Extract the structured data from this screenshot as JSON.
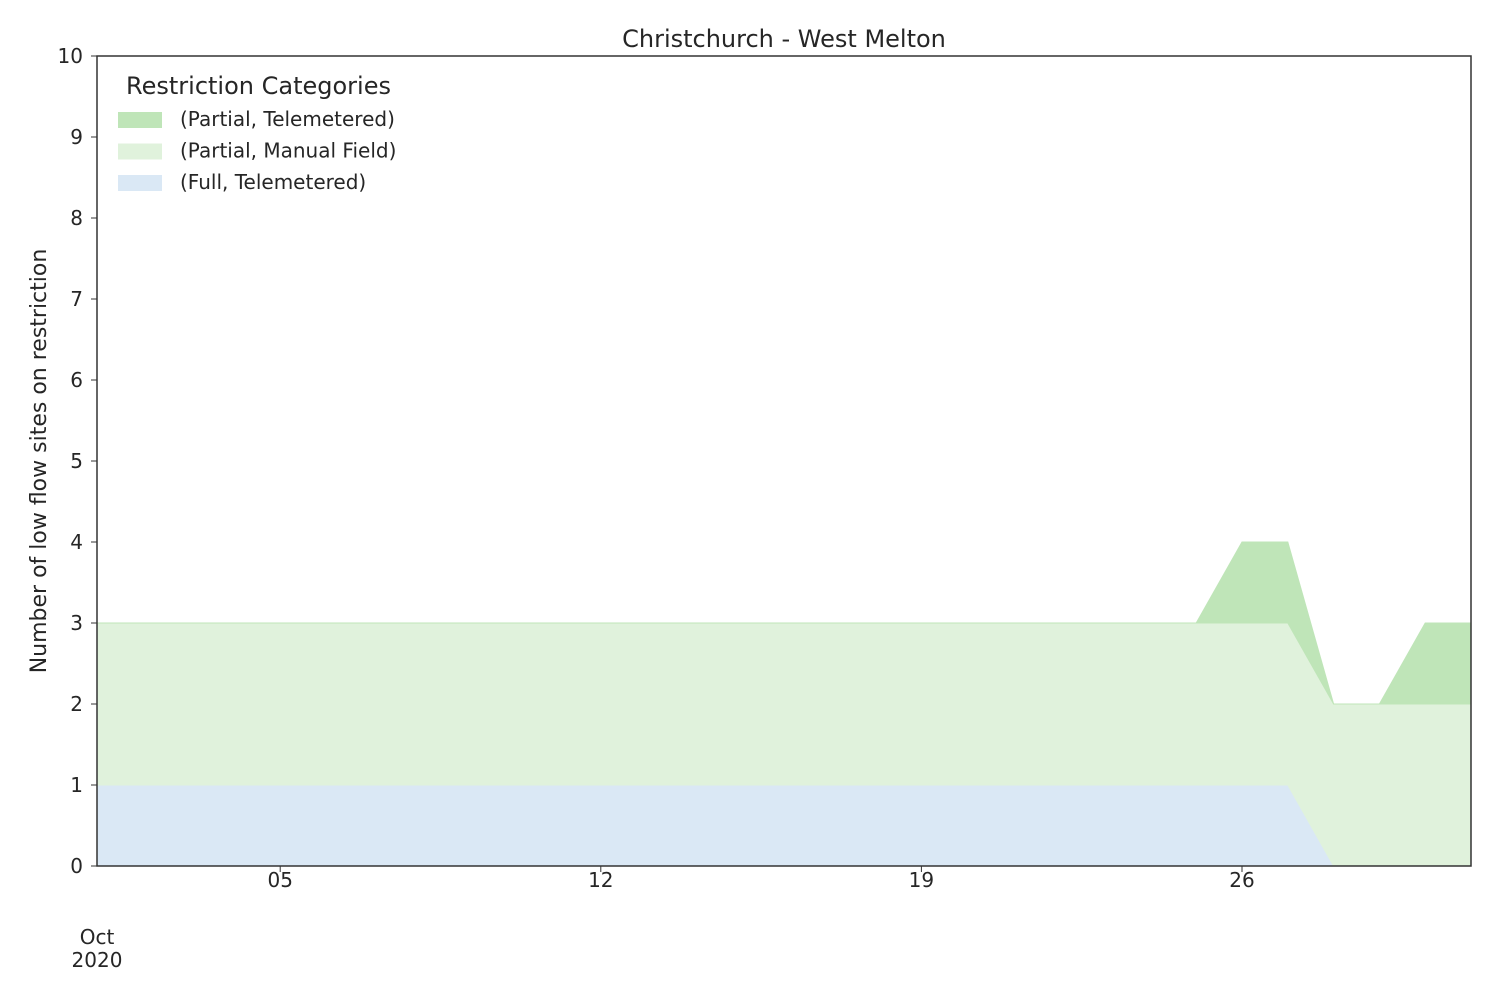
{
  "chart_data": {
    "type": "area",
    "stacked": true,
    "title": "Christchurch - West Melton",
    "xlabel": "",
    "ylabel": "Number of low flow sites on restriction",
    "ylim": [
      0,
      10
    ],
    "yticks": [
      0,
      1,
      2,
      3,
      4,
      5,
      6,
      7,
      8,
      9,
      10
    ],
    "xlim": [
      "2020-10-01",
      "2020-10-31"
    ],
    "x": [
      "2020-10-01",
      "2020-10-02",
      "2020-10-03",
      "2020-10-04",
      "2020-10-05",
      "2020-10-06",
      "2020-10-07",
      "2020-10-08",
      "2020-10-09",
      "2020-10-10",
      "2020-10-11",
      "2020-10-12",
      "2020-10-13",
      "2020-10-14",
      "2020-10-15",
      "2020-10-16",
      "2020-10-17",
      "2020-10-18",
      "2020-10-19",
      "2020-10-20",
      "2020-10-21",
      "2020-10-22",
      "2020-10-23",
      "2020-10-24",
      "2020-10-25",
      "2020-10-26",
      "2020-10-27",
      "2020-10-28",
      "2020-10-29",
      "2020-10-30",
      "2020-10-31"
    ],
    "xtick_dates": [
      "2020-10-05",
      "2020-10-12",
      "2020-10-19",
      "2020-10-26"
    ],
    "xtick_labels": [
      "05",
      "12",
      "19",
      "26"
    ],
    "x_offset_label": [
      "Oct",
      "2020"
    ],
    "grid": false,
    "legend": {
      "title": "Restriction Categories",
      "position": "top-left"
    },
    "series": [
      {
        "name": "(Full, Telemetered)",
        "color": "#dae8f5",
        "values": [
          1,
          1,
          1,
          1,
          1,
          1,
          1,
          1,
          1,
          1,
          1,
          1,
          1,
          1,
          1,
          1,
          1,
          1,
          1,
          1,
          1,
          1,
          1,
          1,
          1,
          1,
          1,
          0,
          0,
          0,
          0
        ]
      },
      {
        "name": "(Partial, Manual Field)",
        "color": "#e0f2dc",
        "values": [
          2,
          2,
          2,
          2,
          2,
          2,
          2,
          2,
          2,
          2,
          2,
          2,
          2,
          2,
          2,
          2,
          2,
          2,
          2,
          2,
          2,
          2,
          2,
          2,
          2,
          2,
          2,
          2,
          2,
          2,
          2
        ]
      },
      {
        "name": "(Partial, Telemetered)",
        "color": "#bfe5b8",
        "values": [
          0,
          0,
          0,
          0,
          0,
          0,
          0,
          0,
          0,
          0,
          0,
          0,
          0,
          0,
          0,
          0,
          0,
          0,
          0,
          0,
          0,
          0,
          0,
          0,
          0,
          1,
          1,
          0,
          0,
          1,
          1
        ]
      }
    ],
    "legend_order": [
      "(Partial, Telemetered)",
      "(Partial, Manual Field)",
      "(Full, Telemetered)"
    ]
  }
}
